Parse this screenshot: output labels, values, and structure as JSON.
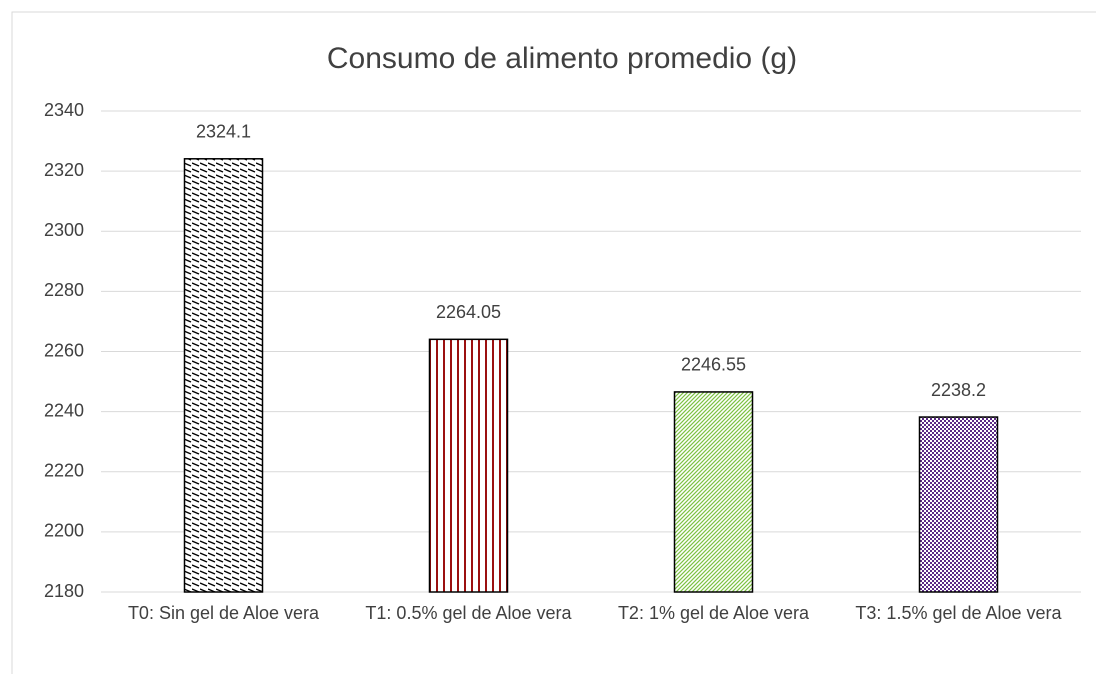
{
  "chart_data": {
    "type": "bar",
    "title": "Consumo de alimento promedio (g)",
    "categories": [
      "T0: Sin gel de Aloe vera",
      "T1: 0.5% gel de Aloe vera",
      "T2: 1% gel de Aloe vera",
      "T3: 1.5% gel de Aloe vera"
    ],
    "values": [
      2324.1,
      2264.05,
      2246.55,
      2238.2
    ],
    "colors": [
      "#000000",
      "#9b1010",
      "#7cc242",
      "#5b2a86"
    ],
    "patterns": [
      "dash-diagonal",
      "vertical",
      "diagonal",
      "checker"
    ],
    "ylim": [
      2180,
      2340
    ],
    "yticks": [
      2180,
      2200,
      2220,
      2240,
      2260,
      2280,
      2300,
      2320,
      2340
    ],
    "grid": true
  }
}
